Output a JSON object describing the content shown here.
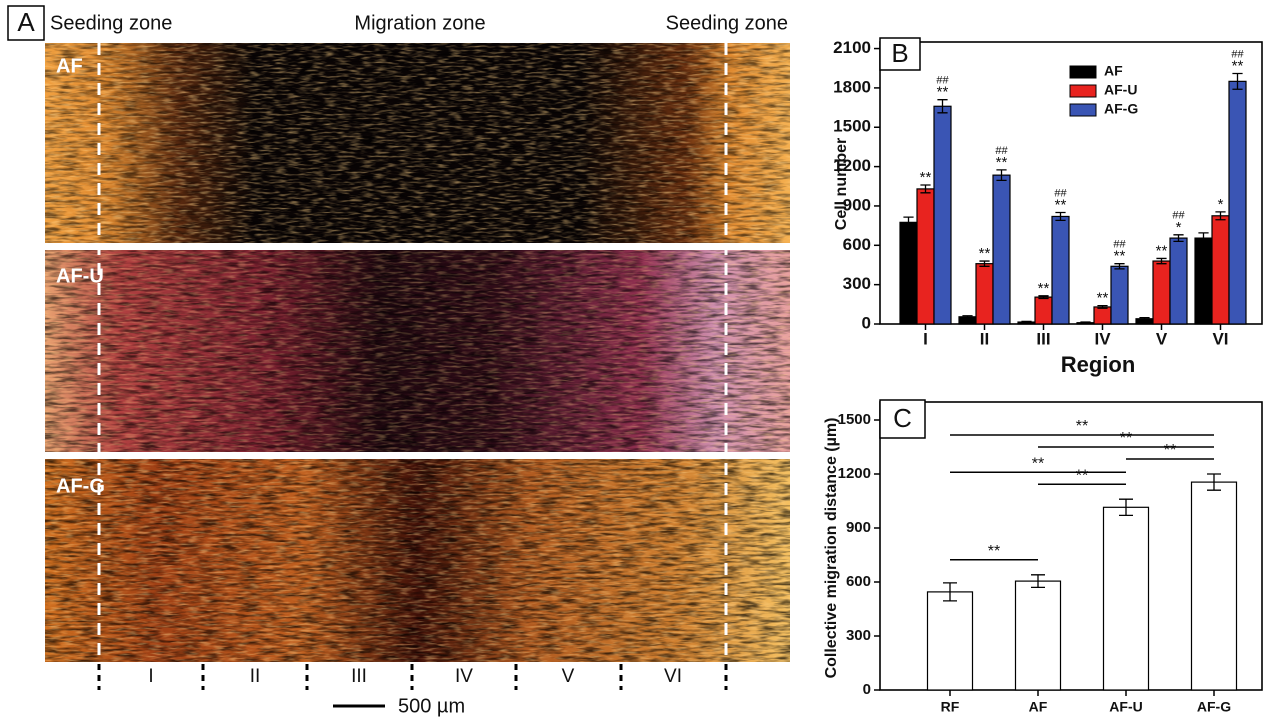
{
  "panel_a": {
    "label": "A",
    "left_zone": "Seeding zone",
    "middle_zone": "Migration zone",
    "right_zone": "Seeding zone",
    "rows": [
      "AF",
      "AF-U",
      "AF-G"
    ],
    "regions": [
      "I",
      "II",
      "III",
      "IV",
      "V",
      "VI"
    ],
    "scale_bar": "500 µm"
  },
  "chart_data": [
    {
      "type": "bar",
      "panel": "B",
      "x_label": "Region",
      "y_label": "Cell number",
      "categories": [
        "I",
        "II",
        "III",
        "IV",
        "V",
        "VI"
      ],
      "series": [
        {
          "name": "AF",
          "color": "#000000",
          "values": [
            775,
            55,
            15,
            10,
            40,
            655
          ],
          "errors": [
            40,
            8,
            5,
            5,
            8,
            40
          ]
        },
        {
          "name": "AF-U",
          "color": "#e8231f",
          "values": [
            1030,
            460,
            205,
            130,
            480,
            825
          ],
          "errors": [
            30,
            20,
            10,
            10,
            20,
            30
          ],
          "annotations": [
            [
              "**"
            ],
            [
              "**"
            ],
            [
              "**"
            ],
            [
              "**"
            ],
            [
              "**"
            ],
            [
              "*"
            ]
          ]
        },
        {
          "name": "AF-G",
          "color": "#3a55b4",
          "values": [
            1660,
            1135,
            820,
            440,
            655,
            1850
          ],
          "errors": [
            50,
            40,
            30,
            20,
            25,
            60
          ],
          "annotations": [
            [
              "##",
              "**"
            ],
            [
              "##",
              "**"
            ],
            [
              "##",
              "**"
            ],
            [
              "##",
              "**"
            ],
            [
              "##",
              "*"
            ],
            [
              "##",
              "**"
            ]
          ]
        }
      ],
      "ylim": [
        0,
        2150
      ],
      "yticks": [
        0,
        300,
        600,
        900,
        1200,
        1500,
        1800,
        2100
      ],
      "legend": "top"
    },
    {
      "type": "bar",
      "panel": "C",
      "y_label": "Collective migration distance (µm)",
      "categories": [
        "RF",
        "AF",
        "AF-U",
        "AF-G"
      ],
      "series": [
        {
          "color": "#ffffff",
          "values": [
            545,
            605,
            1015,
            1155
          ],
          "errors": [
            50,
            35,
            45,
            45
          ]
        }
      ],
      "comparisons": [
        {
          "pair": [
            "RF",
            "AF"
          ],
          "label": "**"
        },
        {
          "pair": [
            "AF",
            "AF-U"
          ],
          "label": "**"
        },
        {
          "pair": [
            "RF",
            "AF-U"
          ],
          "label": "**"
        },
        {
          "pair": [
            "AF-U",
            "AF-G"
          ],
          "label": "**"
        },
        {
          "pair": [
            "AF",
            "AF-G"
          ],
          "label": "**"
        },
        {
          "pair": [
            "RF",
            "AF-G"
          ],
          "label": "**"
        }
      ],
      "ylim": [
        0,
        1600
      ],
      "yticks": [
        0,
        300,
        600,
        900,
        1200,
        1500
      ]
    }
  ]
}
